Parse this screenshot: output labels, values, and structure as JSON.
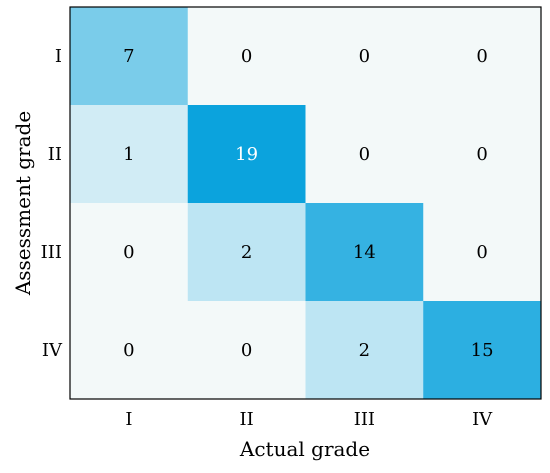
{
  "chart_data": {
    "type": "heatmap",
    "title": "",
    "xlabel": "Actual grade",
    "ylabel": "Assessment grade",
    "x_categories": [
      "I",
      "II",
      "III",
      "IV"
    ],
    "y_categories": [
      "I",
      "II",
      "III",
      "IV"
    ],
    "values": [
      [
        7,
        0,
        0,
        0
      ],
      [
        1,
        19,
        0,
        0
      ],
      [
        0,
        2,
        14,
        0
      ],
      [
        0,
        0,
        2,
        15
      ]
    ],
    "value_range": [
      0,
      19
    ],
    "colors": {
      "low": "#f3f9f9",
      "high": "#0ba3dd",
      "text_dark": "#000000",
      "text_light": "#ffffff",
      "frame": "#000000"
    },
    "legend": "none",
    "grid": false
  }
}
